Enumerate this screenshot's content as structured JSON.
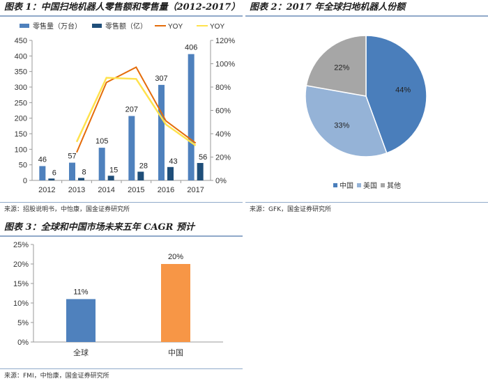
{
  "figure1": {
    "title": "图表 1：中国扫地机器人零售额和零售量（2012-2017）",
    "source": "来源：招股说明书，中怡康，国金证券研究所",
    "legend": [
      "零售量（万台）",
      "零售额（亿）",
      "YOY",
      "YOY"
    ],
    "colors": {
      "volume": "#4f81bd",
      "value": "#1f4e79",
      "yoy1": "#e46c0a",
      "yoy2": "#ffe24d"
    }
  },
  "figure2": {
    "title": "图表 2：2017 年全球扫地机器人份额",
    "source": "来源：GFK，国金证券研究所",
    "colors": [
      "#4a7ebb",
      "#95b3d7",
      "#a6a6a6"
    ]
  },
  "figure3": {
    "title": "图表 3：全球和中国市场未来五年 CAGR 预计",
    "source": "来源：FMI，中怡康，国金证券研究所",
    "colors": [
      "#4f81bd",
      "#f79646"
    ]
  },
  "chart_data": [
    {
      "type": "bar",
      "categories": [
        "2012",
        "2013",
        "2014",
        "2015",
        "2016",
        "2017"
      ],
      "series": [
        {
          "name": "零售量（万台）",
          "values": [
            46,
            57,
            105,
            207,
            307,
            406
          ],
          "axis": "left"
        },
        {
          "name": "零售额（亿）",
          "values": [
            6,
            8,
            15,
            28,
            43,
            56
          ],
          "axis": "left"
        },
        {
          "name": "YOY",
          "type": "line",
          "values": [
            null,
            24,
            84,
            97,
            51,
            32
          ],
          "axis": "right",
          "unit": "%"
        },
        {
          "name": "YOY",
          "type": "line",
          "values": [
            null,
            33,
            88,
            87,
            48,
            30
          ],
          "axis": "right",
          "unit": "%"
        }
      ],
      "ylim": [
        0,
        450
      ],
      "yticks": [
        0,
        50,
        100,
        150,
        200,
        250,
        300,
        350,
        400,
        450
      ],
      "y2lim": [
        0,
        120
      ],
      "y2ticks": [
        0,
        20,
        40,
        60,
        80,
        100,
        120
      ],
      "grid": false,
      "legend_position": "top"
    },
    {
      "type": "pie",
      "labels": [
        "中国",
        "美国",
        "其他"
      ],
      "values": [
        44,
        33,
        22
      ],
      "data_labels": [
        "44%",
        "33%",
        "22%"
      ],
      "legend_position": "bottom"
    },
    {
      "type": "bar",
      "categories": [
        "全球",
        "中国"
      ],
      "values": [
        11,
        20
      ],
      "data_labels": [
        "11%",
        "20%"
      ],
      "ylim": [
        0,
        25
      ],
      "yticks": [
        0,
        5,
        10,
        15,
        20,
        25
      ],
      "unit": "%",
      "grid": false
    }
  ]
}
